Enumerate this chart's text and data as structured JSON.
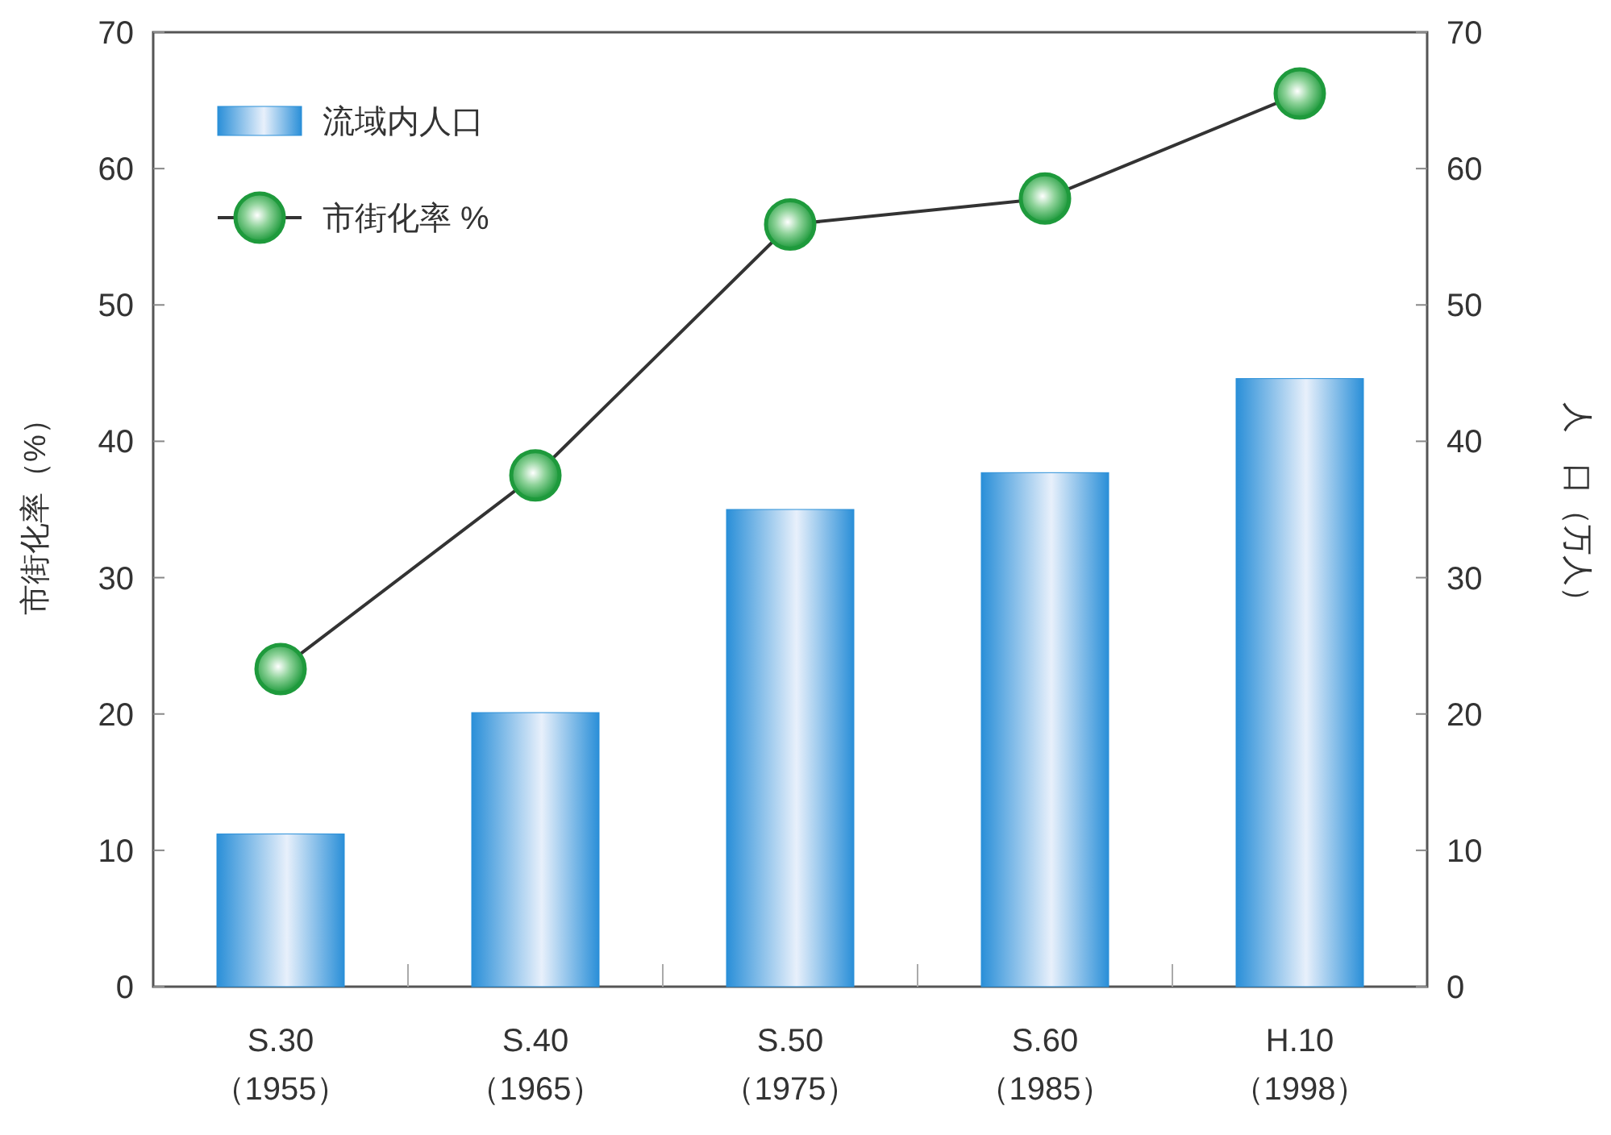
{
  "chart_data": {
    "type": "bar",
    "ylabel": "市街化率（%）",
    "y2label": "人　口（万人）",
    "categories": [
      "S.30\n（1955）",
      "S.40\n（1965）",
      "S.50\n（1975）",
      "S.60\n（1985）",
      "H.10\n（1998）"
    ],
    "series": [
      {
        "name": "流域内人口",
        "color": "#2a8fd8",
        "values": [
          11.2,
          20.1,
          35.0,
          37.7,
          44.6
        ]
      },
      {
        "name": "市街化率 %",
        "type": "line",
        "color": "#1e9a3c",
        "values": [
          23.3,
          37.5,
          55.9,
          57.8,
          65.5
        ]
      }
    ],
    "ylim": [
      0,
      70
    ],
    "yticks": [
      0,
      10,
      20,
      30,
      40,
      50,
      60,
      70
    ],
    "y2lim": [
      0,
      70
    ],
    "y2ticks": [
      0,
      10,
      20,
      30,
      40,
      50,
      60,
      70
    ],
    "marker": "circle",
    "line_style": "solid",
    "legend": "top left"
  }
}
